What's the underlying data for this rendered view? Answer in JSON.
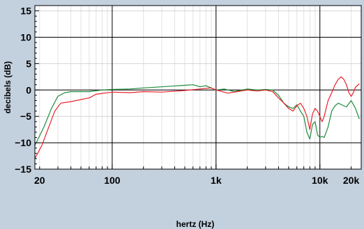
{
  "chart_data": {
    "type": "line",
    "xlabel": "hertz (Hz)",
    "ylabel": "decibels (dB)",
    "x_scale": "log",
    "xlim": [
      18,
      25000
    ],
    "ylim": [
      -15,
      16
    ],
    "y_ticks": [
      -15,
      -10,
      -5,
      0,
      5,
      10,
      15
    ],
    "y_tick_labels": [
      "−15",
      "−10",
      "−5",
      "0",
      "5",
      "10",
      "15"
    ],
    "x_ticks": [
      20,
      100,
      1000,
      10000,
      20000
    ],
    "x_tick_labels": [
      "20",
      "100",
      "1k",
      "10k",
      "20k"
    ],
    "major_gridlines_x": [
      100,
      1000,
      10000
    ],
    "major_gridlines_y": [
      -10,
      0,
      10
    ],
    "grid": true,
    "colors": {
      "background": "#c3d0de",
      "plot": "#ffffff",
      "green": "#1e8a3c",
      "red": "#e8202a"
    },
    "series": [
      {
        "color": "#1e8a3c",
        "points": [
          [
            18,
            -10.5
          ],
          [
            22,
            -7
          ],
          [
            26,
            -3.5
          ],
          [
            30,
            -1.2
          ],
          [
            35,
            -0.5
          ],
          [
            40,
            -0.3
          ],
          [
            60,
            -0.3
          ],
          [
            80,
            0
          ],
          [
            100,
            0.1
          ],
          [
            150,
            0.2
          ],
          [
            200,
            0.4
          ],
          [
            300,
            0.6
          ],
          [
            500,
            0.9
          ],
          [
            600,
            1.0
          ],
          [
            700,
            0.6
          ],
          [
            800,
            0.8
          ],
          [
            1000,
            0
          ],
          [
            1200,
            0.2
          ],
          [
            1500,
            -0.3
          ],
          [
            2000,
            0.2
          ],
          [
            2500,
            0
          ],
          [
            3000,
            0.1
          ],
          [
            3500,
            0
          ],
          [
            4000,
            -1
          ],
          [
            4500,
            -2.5
          ],
          [
            5000,
            -3.2
          ],
          [
            5500,
            -3.5
          ],
          [
            6000,
            -2.8
          ],
          [
            6500,
            -4
          ],
          [
            7000,
            -5
          ],
          [
            7500,
            -8
          ],
          [
            8000,
            -9.3
          ],
          [
            8500,
            -6.5
          ],
          [
            9000,
            -6
          ],
          [
            9500,
            -8.5
          ],
          [
            10000,
            -9
          ],
          [
            10500,
            -8.8
          ],
          [
            11000,
            -9
          ],
          [
            12000,
            -7
          ],
          [
            13000,
            -4
          ],
          [
            14000,
            -3
          ],
          [
            15000,
            -2.5
          ],
          [
            17000,
            -3
          ],
          [
            18000,
            -3.2
          ],
          [
            20000,
            -2
          ],
          [
            22000,
            -3.5
          ],
          [
            24000,
            -5.5
          ]
        ]
      },
      {
        "color": "#e8202a",
        "points": [
          [
            18,
            -13
          ],
          [
            21,
            -10.5
          ],
          [
            24,
            -7.5
          ],
          [
            28,
            -4
          ],
          [
            32,
            -2.5
          ],
          [
            40,
            -2.2
          ],
          [
            60,
            -1.5
          ],
          [
            70,
            -0.8
          ],
          [
            100,
            -0.4
          ],
          [
            150,
            -0.5
          ],
          [
            200,
            -0.3
          ],
          [
            300,
            -0.4
          ],
          [
            500,
            -0.1
          ],
          [
            700,
            0.2
          ],
          [
            900,
            0.4
          ],
          [
            1000,
            0
          ],
          [
            1300,
            -0.6
          ],
          [
            1600,
            -0.3
          ],
          [
            2000,
            0
          ],
          [
            2500,
            -0.2
          ],
          [
            3000,
            0
          ],
          [
            3500,
            -0.3
          ],
          [
            4000,
            -1.5
          ],
          [
            4500,
            -2.5
          ],
          [
            5000,
            -3.5
          ],
          [
            5500,
            -4
          ],
          [
            6000,
            -3
          ],
          [
            6500,
            -2.5
          ],
          [
            7000,
            -3.5
          ],
          [
            7500,
            -5
          ],
          [
            8000,
            -7.5
          ],
          [
            8500,
            -4.5
          ],
          [
            9000,
            -3.5
          ],
          [
            9500,
            -4
          ],
          [
            10000,
            -5
          ],
          [
            10500,
            -6
          ],
          [
            11000,
            -5
          ],
          [
            12000,
            -2
          ],
          [
            13000,
            -0.5
          ],
          [
            14000,
            1
          ],
          [
            15000,
            2
          ],
          [
            16000,
            2.5
          ],
          [
            17000,
            2
          ],
          [
            18000,
            1
          ],
          [
            19000,
            -0.5
          ],
          [
            20000,
            -1.2
          ],
          [
            21000,
            -0.5
          ],
          [
            22000,
            0.5
          ],
          [
            24000,
            1.2
          ]
        ]
      }
    ]
  }
}
